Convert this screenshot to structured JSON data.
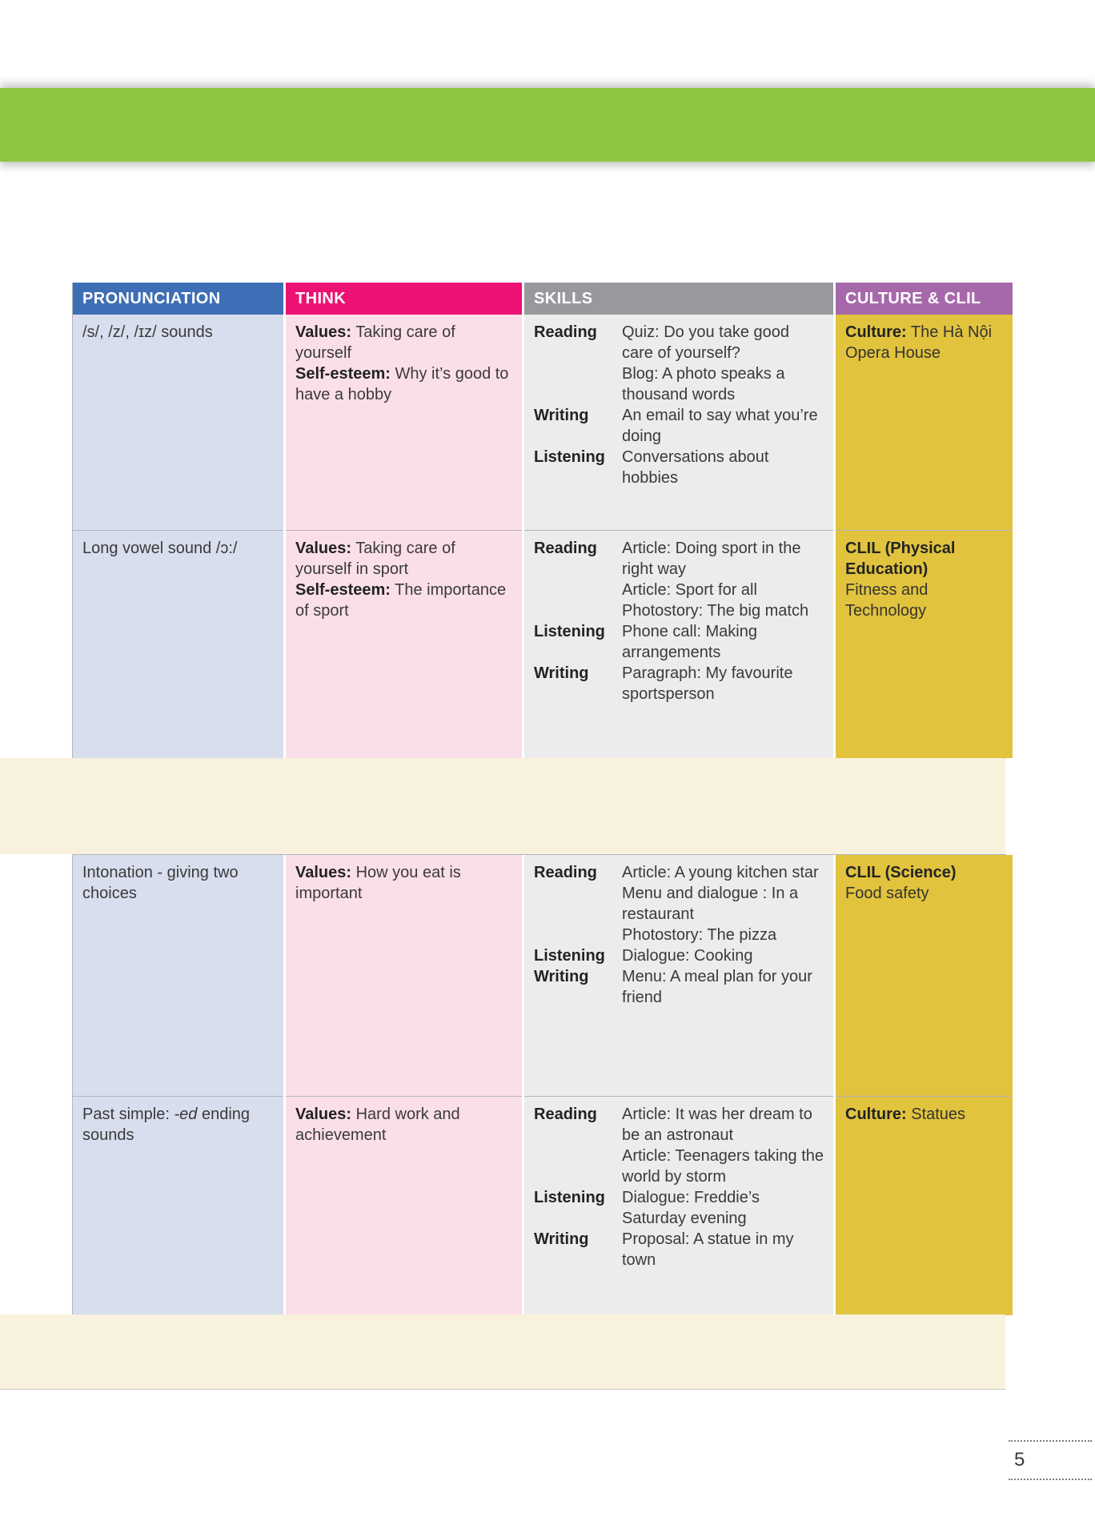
{
  "page": {
    "number": "5"
  },
  "colors": {
    "green_bar": "#8EC63F",
    "header_pronunciation": "#3E6EB5",
    "header_think": "#EC1274",
    "header_skills": "#97999C",
    "header_culture": "#A768AB",
    "cell_pronunciation": "#D8DEED",
    "cell_think": "#FBDFE8",
    "cell_skills": "#ECECED",
    "cell_culture": "#E1C33E",
    "separator_band": "#F8F1DE"
  },
  "table": {
    "headers": [
      "PRONUNCIATION",
      "THINK",
      "SKILLS",
      "CULTURE & CLIL"
    ]
  },
  "rows": [
    {
      "pronunciation": "/s/, /z/, /ɪz/ sounds",
      "think": [
        {
          "label": "Values:",
          "text": "Taking care of yourself"
        },
        {
          "label": "Self-esteem:",
          "text": "Why it’s good to have a hobby"
        }
      ],
      "skills": [
        {
          "label": "Reading",
          "lines": [
            "Quiz: Do you take good care of yourself?",
            "Blog: A photo speaks a thousand words"
          ]
        },
        {
          "label": "Writing",
          "lines": [
            "An email to say what you’re doing"
          ]
        },
        {
          "label": "Listening",
          "lines": [
            "Conversations about hobbies"
          ]
        }
      ],
      "culture": {
        "bold": "Culture:",
        "text": "The Hà Nội Opera House"
      }
    },
    {
      "pronunciation": "Long vowel sound /ɔ:/",
      "think": [
        {
          "label": "Values:",
          "text": "Taking care of yourself in sport"
        },
        {
          "label": "Self-esteem:",
          "text": "The importance of sport"
        }
      ],
      "skills": [
        {
          "label": "Reading",
          "lines": [
            "Article: Doing sport in the right way",
            "Article: Sport for all",
            "Photostory: The big match"
          ]
        },
        {
          "label": "Listening",
          "lines": [
            "Phone call: Making arrangements"
          ]
        },
        {
          "label": "Writing",
          "lines": [
            "Paragraph: My favourite sportsperson"
          ]
        }
      ],
      "culture": {
        "bold": "CLIL (Physical Education)",
        "text": "Fitness and Technology"
      }
    },
    {
      "pronunciation": "Intonation - giving two choices",
      "think": [
        {
          "label": "Values:",
          "text": "How you eat is important"
        }
      ],
      "skills": [
        {
          "label": "Reading",
          "lines": [
            "Article: A young kitchen star",
            "Menu and dialogue : In a restaurant",
            "Photostory: The pizza"
          ]
        },
        {
          "label": "Listening",
          "lines": [
            "Dialogue: Cooking"
          ]
        },
        {
          "label": "Writing",
          "lines": [
            "Menu: A meal plan for your friend"
          ]
        }
      ],
      "culture": {
        "bold": "CLIL (Science)",
        "text": "Food safety"
      }
    },
    {
      "pronunciation": "Past simple: -ed ending sounds",
      "pronunciation_parts": {
        "pre": "Past simple: ",
        "italic": "-ed",
        "post": " ending sounds"
      },
      "think": [
        {
          "label": "Values:",
          "text": "Hard work and achievement"
        }
      ],
      "skills": [
        {
          "label": "Reading",
          "lines": [
            "Article: It was her dream to be an astronaut",
            "Article: Teenagers taking the world by storm"
          ]
        },
        {
          "label": "Listening",
          "lines": [
            "Dialogue: Freddie’s Saturday evening"
          ]
        },
        {
          "label": "Writing",
          "lines": [
            "Proposal: A statue in my town"
          ]
        }
      ],
      "culture": {
        "bold": "Culture:",
        "text": "Statues"
      }
    }
  ]
}
